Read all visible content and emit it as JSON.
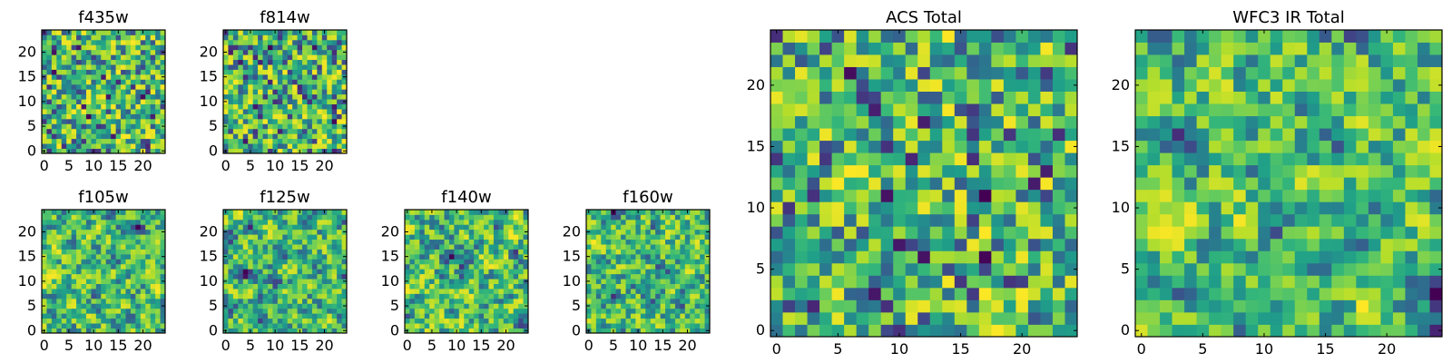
{
  "figure": {
    "colormap": "viridis",
    "grid": false
  },
  "chart_data": [
    {
      "id": "f435w",
      "type": "heatmap",
      "title": "f435w",
      "xticks": [
        "0",
        "5",
        "10",
        "15",
        "20"
      ],
      "yticks": [
        "0",
        "5",
        "10",
        "15",
        "20"
      ],
      "xlim": [
        0,
        24
      ],
      "ylim": [
        0,
        24
      ],
      "grid_size": 25,
      "seed": 435,
      "vmin": 0,
      "vmax": 1
    },
    {
      "id": "f814w",
      "type": "heatmap",
      "title": "f814w",
      "xticks": [
        "0",
        "5",
        "10",
        "15",
        "20"
      ],
      "yticks": [
        "0",
        "5",
        "10",
        "15",
        "20"
      ],
      "xlim": [
        0,
        24
      ],
      "ylim": [
        0,
        24
      ],
      "grid_size": 25,
      "seed": 814,
      "vmin": 0,
      "vmax": 1
    },
    {
      "id": "f105w",
      "type": "heatmap",
      "title": "f105w",
      "xticks": [
        "0",
        "5",
        "10",
        "15",
        "20"
      ],
      "yticks": [
        "0",
        "5",
        "10",
        "15",
        "20"
      ],
      "xlim": [
        0,
        24
      ],
      "ylim": [
        0,
        24
      ],
      "grid_size": 25,
      "seed": 105,
      "vmin": 0,
      "vmax": 1
    },
    {
      "id": "f125w",
      "type": "heatmap",
      "title": "f125w",
      "xticks": [
        "0",
        "5",
        "10",
        "15",
        "20"
      ],
      "yticks": [
        "0",
        "5",
        "10",
        "15",
        "20"
      ],
      "xlim": [
        0,
        24
      ],
      "ylim": [
        0,
        24
      ],
      "grid_size": 25,
      "seed": 125,
      "vmin": 0,
      "vmax": 1
    },
    {
      "id": "f140w",
      "type": "heatmap",
      "title": "f140w",
      "xticks": [
        "0",
        "5",
        "10",
        "15",
        "20"
      ],
      "yticks": [
        "0",
        "5",
        "10",
        "15",
        "20"
      ],
      "xlim": [
        0,
        24
      ],
      "ylim": [
        0,
        24
      ],
      "grid_size": 25,
      "seed": 140,
      "vmin": 0,
      "vmax": 1
    },
    {
      "id": "f160w",
      "type": "heatmap",
      "title": "f160w",
      "xticks": [
        "0",
        "5",
        "10",
        "15",
        "20"
      ],
      "yticks": [
        "0",
        "5",
        "10",
        "15",
        "20"
      ],
      "xlim": [
        0,
        24
      ],
      "ylim": [
        0,
        24
      ],
      "grid_size": 25,
      "seed": 160,
      "vmin": 0,
      "vmax": 1
    },
    {
      "id": "acs",
      "type": "heatmap",
      "title": "ACS Total",
      "xticks": [
        "0",
        "5",
        "10",
        "15",
        "20"
      ],
      "yticks": [
        "0",
        "5",
        "10",
        "15",
        "20"
      ],
      "xlim": [
        0,
        24
      ],
      "ylim": [
        0,
        24
      ],
      "grid_size": 25,
      "seed": 999,
      "vmin": 0,
      "vmax": 1
    },
    {
      "id": "wfc3",
      "type": "heatmap",
      "title": "WFC3 IR Total",
      "xticks": [
        "0",
        "5",
        "10",
        "15",
        "20"
      ],
      "yticks": [
        "0",
        "5",
        "10",
        "15",
        "20"
      ],
      "xlim": [
        0,
        24
      ],
      "ylim": [
        0,
        24
      ],
      "grid_size": 25,
      "seed": 333,
      "vmin": 0,
      "vmax": 1
    }
  ]
}
